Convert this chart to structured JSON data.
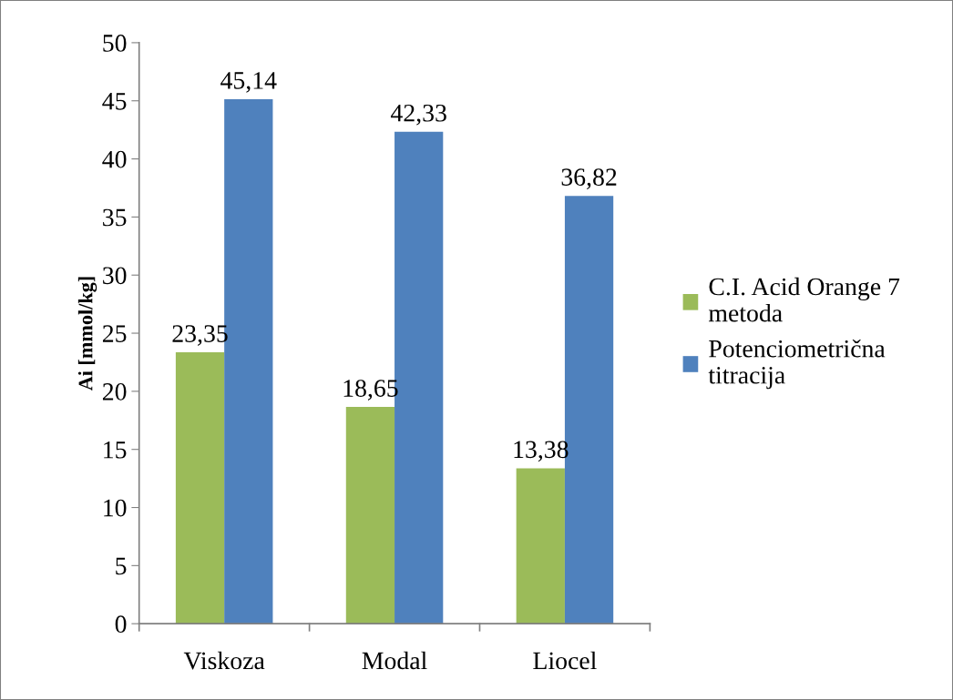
{
  "chart_data": {
    "type": "bar",
    "ylabel": "Ai [mmol/kg]",
    "categories": [
      "Viskoza",
      "Modal",
      "Liocel"
    ],
    "series": [
      {
        "name": "C.I. Acid Orange 7\nmetoda",
        "color": "#9bbb59",
        "values": [
          23.35,
          18.65,
          13.38
        ],
        "value_labels": [
          "23,35",
          "18,65",
          "13,38"
        ]
      },
      {
        "name": "Potenciometrična\ntitracija",
        "color": "#4f81bd",
        "values": [
          45.14,
          42.33,
          36.82
        ],
        "value_labels": [
          "45,14",
          "42,33",
          "36,82"
        ]
      }
    ],
    "ylim": [
      0,
      50
    ],
    "yticks": [
      0,
      5,
      10,
      15,
      20,
      25,
      30,
      35,
      40,
      45,
      50
    ],
    "grid": false,
    "legend": "right"
  }
}
